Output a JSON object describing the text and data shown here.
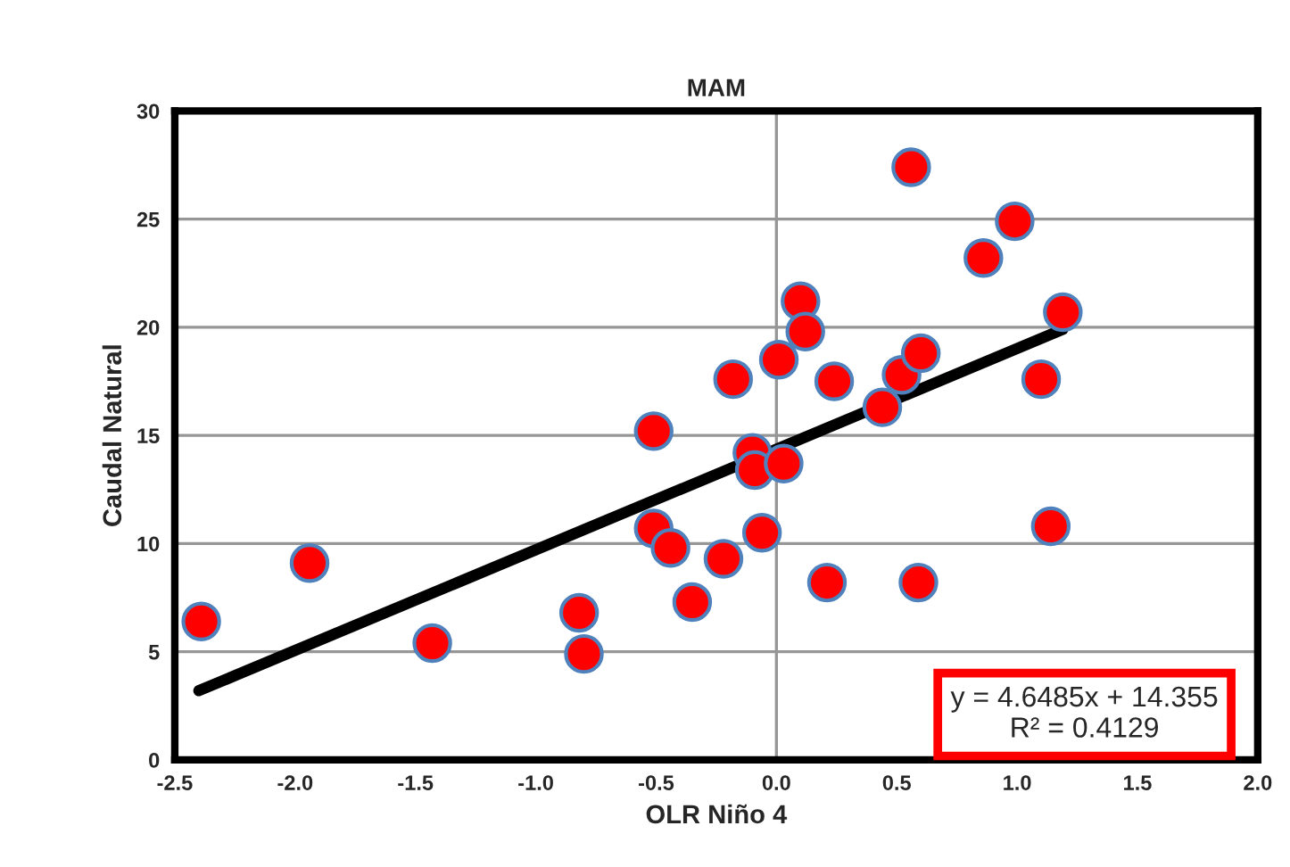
{
  "chart_data": {
    "type": "scatter",
    "title": "MAM",
    "xlabel": "OLR Niño 4",
    "ylabel": "Caudal Natural",
    "series": [
      {
        "color": "#ff0000",
        "marker": "circle",
        "x": [
          -2.39,
          -1.94,
          -1.43,
          -0.82,
          -0.8,
          -0.51,
          -0.51,
          -0.44,
          -0.35,
          -0.22,
          -0.18,
          -0.06,
          -0.1,
          -0.09,
          0.03,
          0.01,
          0.1,
          0.12,
          0.24,
          0.21,
          0.44,
          0.52,
          0.6,
          0.59,
          0.56,
          0.86,
          0.99,
          1.19,
          1.1,
          1.14
        ],
        "values": [
          6.4,
          9.1,
          5.4,
          6.8,
          4.9,
          15.2,
          10.7,
          9.8,
          7.3,
          9.3,
          17.6,
          10.5,
          14.2,
          13.4,
          13.7,
          18.5,
          21.2,
          19.8,
          17.5,
          8.2,
          16.3,
          17.8,
          18.8,
          8.2,
          27.4,
          23.2,
          24.9,
          20.7,
          17.6,
          10.8
        ]
      },
      {
        "type": "line",
        "color": "#000000",
        "marker": "none",
        "x": [
          -2.4,
          1.19
        ],
        "values": [
          3.2,
          19.9
        ]
      }
    ],
    "annotations": [
      "y = 4.6485x + 14.355\nR² = 0.4129"
    ],
    "ref_lines": [
      {
        "axis": "x",
        "value": 0,
        "color": "#969696"
      }
    ],
    "xlim": [
      -2.5,
      2.0
    ],
    "ylim": [
      0,
      30
    ],
    "xticks": [
      {
        "value": -2.5,
        "label": "-2.5"
      },
      {
        "value": -2.0,
        "label": "-2.0"
      },
      {
        "value": -1.5,
        "label": "-1.5"
      },
      {
        "value": -1.0,
        "label": "-1.0"
      },
      {
        "value": -0.5,
        "label": "-0.5"
      },
      {
        "value": 0,
        "label": "0.0"
      },
      {
        "value": 0.5,
        "label": "0.5"
      },
      {
        "value": 1.0,
        "label": "1.0"
      },
      {
        "value": 1.5,
        "label": "1.5"
      },
      {
        "value": 2.0,
        "label": "2.0"
      }
    ],
    "yticks": [
      0,
      5,
      10,
      15,
      20,
      25,
      30
    ],
    "grid": "y",
    "legend": false
  }
}
